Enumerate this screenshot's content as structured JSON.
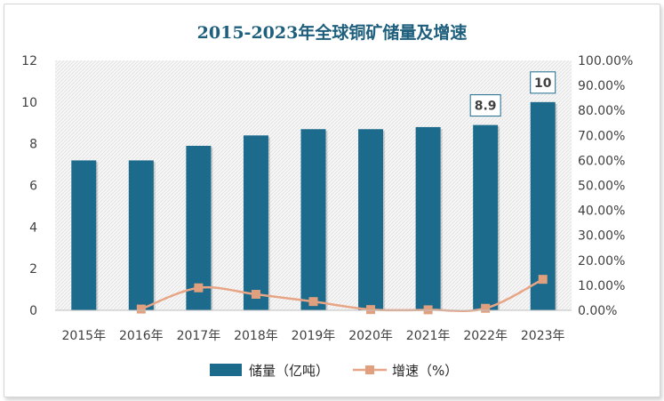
{
  "chart_data": {
    "type": "bar",
    "title": "2015-2023年全球铜矿储量及增速",
    "categories": [
      "2015年",
      "2016年",
      "2017年",
      "2018年",
      "2019年",
      "2020年",
      "2021年",
      "2022年",
      "2023年"
    ],
    "series": [
      {
        "name": "储量（亿吨）",
        "type": "bar",
        "axis": "left",
        "values": [
          7.2,
          7.2,
          7.9,
          8.4,
          8.7,
          8.7,
          8.8,
          8.9,
          10
        ]
      },
      {
        "name": "增速（%）",
        "type": "line",
        "axis": "right",
        "values": [
          null,
          0.5,
          9.0,
          6.4,
          3.5,
          0.3,
          0.2,
          0.8,
          12.4
        ]
      }
    ],
    "data_labels": [
      {
        "category": "2022年",
        "text": "8.9"
      },
      {
        "category": "2023年",
        "text": "10"
      }
    ],
    "ylim": [
      0,
      12
    ],
    "yticks": [
      "0",
      "2",
      "4",
      "6",
      "8",
      "10",
      "12"
    ],
    "y2lim": [
      0,
      100
    ],
    "y2ticks": [
      "0.00%",
      "10.00%",
      "20.00%",
      "30.00%",
      "40.00%",
      "50.00%",
      "60.00%",
      "70.00%",
      "80.00%",
      "90.00%",
      "100.00%"
    ],
    "grid": false,
    "legend": "bottom",
    "colors": {
      "bar": "#1c6a8c",
      "line": "#e8a585",
      "marker": "#e0a07d",
      "title": "#1e5f7d"
    }
  }
}
